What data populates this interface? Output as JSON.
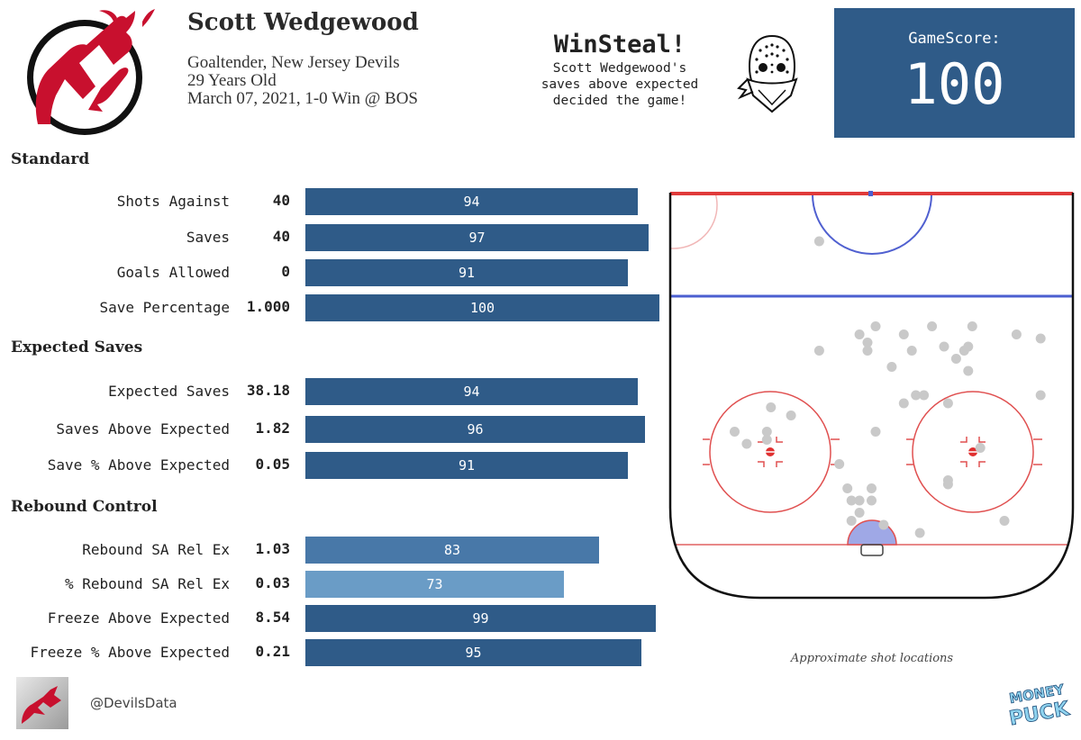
{
  "player": {
    "name": "Scott Wedgewood",
    "position_team": "Goaltender, New Jersey Devils",
    "age": "29 Years Old",
    "game": "March 07, 2021, 1-0 Win @ BOS"
  },
  "winsteal": {
    "title": "WinSteal!",
    "lines": [
      "Scott Wedgewood's",
      "saves above expected",
      "decided the game!"
    ]
  },
  "gamescore": {
    "label": "GameScore:",
    "value": "100"
  },
  "colors": {
    "bar_dark": "#2f5b88",
    "bar_mid": "#4878a8",
    "bar_light": "#6a9cc6",
    "gamescore_bg": "#2f5b88"
  },
  "chart_data": {
    "type": "bar",
    "orientation": "horizontal",
    "xlim": [
      0,
      100
    ],
    "sections": [
      {
        "title": "Standard",
        "rows": [
          {
            "label": "Shots Against",
            "value": "40",
            "percentile": 94
          },
          {
            "label": "Saves",
            "value": "40",
            "percentile": 97
          },
          {
            "label": "Goals Allowed",
            "value": "0",
            "percentile": 91
          },
          {
            "label": "Save Percentage",
            "value": "1.000",
            "percentile": 100
          }
        ]
      },
      {
        "title": "Expected Saves",
        "rows": [
          {
            "label": "Expected Saves",
            "value": "38.18",
            "percentile": 94
          },
          {
            "label": "Saves Above Expected",
            "value": "1.82",
            "percentile": 96
          },
          {
            "label": "Save % Above Expected",
            "value": "0.05",
            "percentile": 91
          }
        ]
      },
      {
        "title": "Rebound Control",
        "rows": [
          {
            "label": "Rebound SA Rel Ex",
            "value": "1.03",
            "percentile": 83
          },
          {
            "label": "% Rebound SA Rel Ex",
            "value": "0.03",
            "percentile": 73
          },
          {
            "label": "Freeze Above Expected",
            "value": "8.54",
            "percentile": 99
          },
          {
            "label": "Freeze % Above Expected",
            "value": "0.21",
            "percentile": 95
          }
        ]
      }
    ],
    "shot_map": {
      "type": "scatter",
      "caption": "Approximate shot locations",
      "points": [
        [
          0.37,
          0.12
        ],
        [
          0.51,
          0.33
        ],
        [
          0.65,
          0.33
        ],
        [
          0.75,
          0.33
        ],
        [
          0.47,
          0.35
        ],
        [
          0.58,
          0.35
        ],
        [
          0.86,
          0.35
        ],
        [
          0.92,
          0.36
        ],
        [
          0.49,
          0.37
        ],
        [
          0.37,
          0.39
        ],
        [
          0.49,
          0.39
        ],
        [
          0.6,
          0.39
        ],
        [
          0.68,
          0.38
        ],
        [
          0.74,
          0.38
        ],
        [
          0.73,
          0.39
        ],
        [
          0.71,
          0.41
        ],
        [
          0.55,
          0.43
        ],
        [
          0.74,
          0.44
        ],
        [
          0.61,
          0.5
        ],
        [
          0.63,
          0.5
        ],
        [
          0.58,
          0.52
        ],
        [
          0.69,
          0.52
        ],
        [
          0.92,
          0.5
        ],
        [
          0.25,
          0.53
        ],
        [
          0.3,
          0.55
        ],
        [
          0.24,
          0.59
        ],
        [
          0.24,
          0.61
        ],
        [
          0.51,
          0.59
        ],
        [
          0.16,
          0.59
        ],
        [
          0.19,
          0.62
        ],
        [
          0.77,
          0.63
        ],
        [
          0.42,
          0.67
        ],
        [
          0.69,
          0.71
        ],
        [
          0.69,
          0.72
        ],
        [
          0.44,
          0.73
        ],
        [
          0.5,
          0.73
        ],
        [
          0.45,
          0.76
        ],
        [
          0.47,
          0.76
        ],
        [
          0.5,
          0.76
        ],
        [
          0.47,
          0.79
        ],
        [
          0.45,
          0.81
        ],
        [
          0.53,
          0.82
        ],
        [
          0.83,
          0.81
        ],
        [
          0.62,
          0.84
        ]
      ]
    }
  },
  "footer": {
    "handle": "@DevilsData",
    "moneypuck_line1": "MONEY",
    "moneypuck_line2": "PUCK"
  }
}
